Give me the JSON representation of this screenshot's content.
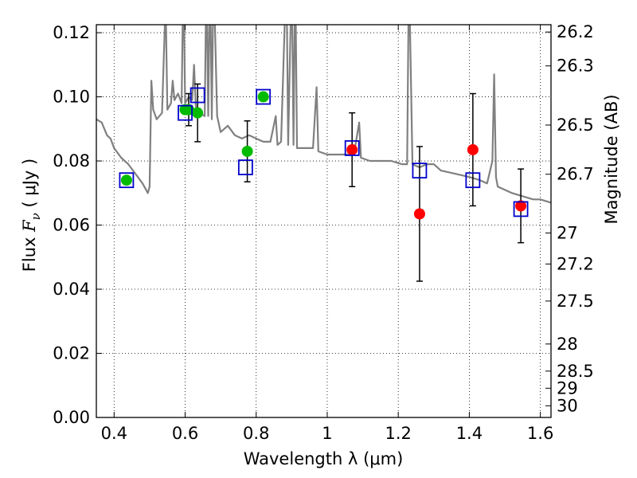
{
  "chart_data": {
    "type": "scatter",
    "xlabel": "Wavelength  λ (μm)",
    "ylabel": "Flux  F_ν  ( μJy )",
    "ylabel_parts": [
      "Flux  ",
      "F",
      "ν",
      "  ( μJy )"
    ],
    "y2label": "Magnitude (AB)",
    "xlim": [
      0.35,
      1.63
    ],
    "ylim": [
      0.0,
      0.1225
    ],
    "grid": true,
    "x_ticks": [
      {
        "value": 0.4,
        "label": "0.4"
      },
      {
        "value": 0.6,
        "label": "0.6"
      },
      {
        "value": 0.8,
        "label": "0.8"
      },
      {
        "value": 1.0,
        "label": "1"
      },
      {
        "value": 1.2,
        "label": "1.2"
      },
      {
        "value": 1.4,
        "label": "1.4"
      },
      {
        "value": 1.6,
        "label": "1.6"
      }
    ],
    "y_ticks": [
      {
        "value": 0.0,
        "label": "0.00"
      },
      {
        "value": 0.02,
        "label": "0.02"
      },
      {
        "value": 0.04,
        "label": "0.04"
      },
      {
        "value": 0.06,
        "label": "0.06"
      },
      {
        "value": 0.08,
        "label": "0.08"
      },
      {
        "value": 0.1,
        "label": "0.10"
      },
      {
        "value": 0.12,
        "label": "0.12"
      }
    ],
    "y2_ticks": [
      {
        "mag": 26.2,
        "label": "26.2"
      },
      {
        "mag": 26.3,
        "label": "26.3"
      },
      {
        "mag": 26.5,
        "label": "26.5"
      },
      {
        "mag": 26.7,
        "label": "26.7"
      },
      {
        "mag": 27.0,
        "label": "27"
      },
      {
        "mag": 27.2,
        "label": "27.2"
      },
      {
        "mag": 27.5,
        "label": "27.5"
      },
      {
        "mag": 28.0,
        "label": "28"
      },
      {
        "mag": 28.5,
        "label": "28.5"
      },
      {
        "mag": 29.0,
        "label": "29"
      },
      {
        "mag": 30.0,
        "label": "30"
      }
    ],
    "series": [
      {
        "kind": "model_spectrum",
        "color": "#808080",
        "points": [
          [
            0.35,
            0.093
          ],
          [
            0.365,
            0.092
          ],
          [
            0.38,
            0.088
          ],
          [
            0.39,
            0.087
          ],
          [
            0.4,
            0.084
          ],
          [
            0.42,
            0.081
          ],
          [
            0.44,
            0.079
          ],
          [
            0.46,
            0.076
          ],
          [
            0.48,
            0.073
          ],
          [
            0.495,
            0.07
          ],
          [
            0.5,
            0.072
          ],
          [
            0.505,
            0.105
          ],
          [
            0.51,
            0.096
          ],
          [
            0.52,
            0.093
          ],
          [
            0.535,
            0.095
          ],
          [
            0.545,
            0.13
          ],
          [
            0.55,
            0.096
          ],
          [
            0.56,
            0.098
          ],
          [
            0.565,
            0.105
          ],
          [
            0.57,
            0.099
          ],
          [
            0.58,
            0.101
          ],
          [
            0.59,
            0.098
          ],
          [
            0.595,
            0.14
          ],
          [
            0.6,
            0.098
          ],
          [
            0.61,
            0.1
          ],
          [
            0.62,
            0.099
          ],
          [
            0.625,
            0.11
          ],
          [
            0.63,
            0.097
          ],
          [
            0.64,
            0.095
          ],
          [
            0.655,
            0.094
          ],
          [
            0.66,
            0.14
          ],
          [
            0.665,
            0.094
          ],
          [
            0.67,
            0.14
          ],
          [
            0.675,
            0.093
          ],
          [
            0.68,
            0.14
          ],
          [
            0.69,
            0.094
          ],
          [
            0.7,
            0.089
          ],
          [
            0.72,
            0.091
          ],
          [
            0.74,
            0.088
          ],
          [
            0.76,
            0.087
          ],
          [
            0.78,
            0.088
          ],
          [
            0.8,
            0.087
          ],
          [
            0.82,
            0.086
          ],
          [
            0.84,
            0.086
          ],
          [
            0.855,
            0.094
          ],
          [
            0.86,
            0.085
          ],
          [
            0.87,
            0.086
          ],
          [
            0.885,
            0.14
          ],
          [
            0.89,
            0.085
          ],
          [
            0.9,
            0.14
          ],
          [
            0.905,
            0.085
          ],
          [
            0.91,
            0.14
          ],
          [
            0.915,
            0.084
          ],
          [
            0.94,
            0.084
          ],
          [
            0.96,
            0.084
          ],
          [
            0.97,
            0.103
          ],
          [
            0.975,
            0.083
          ],
          [
            1.0,
            0.082
          ],
          [
            1.05,
            0.082
          ],
          [
            1.075,
            0.082
          ],
          [
            1.09,
            0.092
          ],
          [
            1.095,
            0.081
          ],
          [
            1.12,
            0.08
          ],
          [
            1.15,
            0.08
          ],
          [
            1.18,
            0.08
          ],
          [
            1.21,
            0.079
          ],
          [
            1.225,
            0.079
          ],
          [
            1.23,
            0.14
          ],
          [
            1.24,
            0.079
          ],
          [
            1.26,
            0.078
          ],
          [
            1.28,
            0.079
          ],
          [
            1.3,
            0.079
          ],
          [
            1.32,
            0.077
          ],
          [
            1.36,
            0.076
          ],
          [
            1.4,
            0.075
          ],
          [
            1.43,
            0.074
          ],
          [
            1.45,
            0.073
          ],
          [
            1.465,
            0.08
          ],
          [
            1.47,
            0.107
          ],
          [
            1.475,
            0.075
          ],
          [
            1.48,
            0.072
          ],
          [
            1.5,
            0.071
          ],
          [
            1.52,
            0.07
          ],
          [
            1.55,
            0.069
          ],
          [
            1.58,
            0.068
          ],
          [
            1.6,
            0.068
          ],
          [
            1.63,
            0.067
          ]
        ]
      },
      {
        "kind": "model_photometry",
        "marker": "square",
        "color": "#0000cc",
        "points": [
          [
            0.435,
            0.074
          ],
          [
            0.6,
            0.095
          ],
          [
            0.635,
            0.1005
          ],
          [
            0.77,
            0.078
          ],
          [
            0.82,
            0.1
          ],
          [
            1.07,
            0.084
          ],
          [
            1.26,
            0.077
          ],
          [
            1.41,
            0.074
          ],
          [
            1.545,
            0.065
          ]
        ]
      },
      {
        "kind": "observed_green",
        "marker": "circle",
        "color": "#00bb00",
        "points": [
          {
            "x": 0.435,
            "y": 0.074,
            "err": 0.0
          },
          {
            "x": 0.6,
            "y": 0.096,
            "err": 0.0
          },
          {
            "x": 0.61,
            "y": 0.096,
            "err": 0.005
          },
          {
            "x": 0.635,
            "y": 0.095,
            "err": 0.009
          },
          {
            "x": 0.775,
            "y": 0.083,
            "err": 0.0095
          },
          {
            "x": 0.82,
            "y": 0.1,
            "err": 0.0
          }
        ]
      },
      {
        "kind": "observed_red",
        "marker": "circle",
        "color": "#ff0000",
        "points": [
          {
            "x": 1.07,
            "y": 0.0835,
            "err": 0.0115
          },
          {
            "x": 1.26,
            "y": 0.0635,
            "err": 0.021
          },
          {
            "x": 1.41,
            "y": 0.0835,
            "err": 0.0175
          },
          {
            "x": 1.545,
            "y": 0.066,
            "err": 0.0115
          }
        ]
      }
    ]
  }
}
